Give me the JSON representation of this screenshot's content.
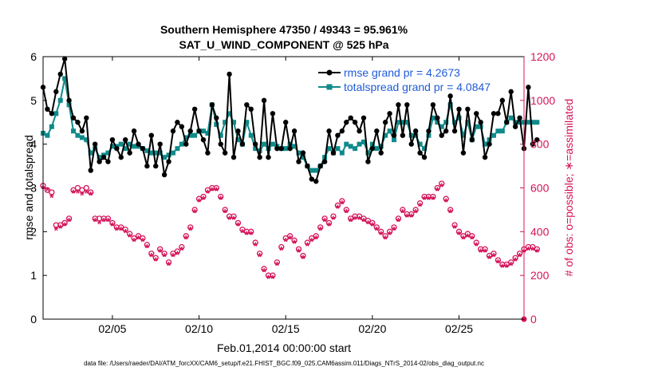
{
  "chart_data": {
    "type": "line",
    "title_line1": "Southern Hemisphere 47350 / 49343 = 95.961%",
    "title_line2": "SAT_U_WIND_COMPONENT @ 525 hPa",
    "ylabel_left": "rmse and totalspread",
    "ylabel_right": "# of obs: o=possible; ∗=assimilated",
    "xlabel": "Feb.01,2014 00:00:00 start",
    "footer": "data file: /Users/raeder/DAI/ATM_forcXX/CAM6_setup/f.e21.FHIST_BGC.f09_025.CAM6assim.011/Diags_NTrS_2014-02/obs_diag_output.nc",
    "xlim": [
      1,
      28.75
    ],
    "ylim_left": [
      0,
      6
    ],
    "ylim_right": [
      0,
      1200
    ],
    "x_ticks": [
      {
        "x": 5,
        "label": "02/05"
      },
      {
        "x": 10,
        "label": "02/10"
      },
      {
        "x": 15,
        "label": "02/15"
      },
      {
        "x": 20,
        "label": "02/20"
      },
      {
        "x": 25,
        "label": "02/25"
      }
    ],
    "y_ticks_left": [
      0,
      1,
      2,
      3,
      4,
      5,
      6
    ],
    "y_ticks_right": [
      0,
      200,
      400,
      600,
      800,
      1000,
      1200
    ],
    "colors": {
      "rmse": "#000000",
      "spread": "#0f8a8a",
      "obs": "#d4145a",
      "legend_text": "#1f5bd6"
    },
    "series": [
      {
        "name": "rmse",
        "legend": "rmse grand pr = 4.2673",
        "start": 1.0,
        "step": 0.25,
        "values": [
          5.3,
          4.8,
          4.7,
          5.2,
          5.6,
          5.95,
          5.0,
          4.6,
          4.5,
          4.3,
          4.6,
          3.4,
          4.0,
          3.6,
          3.7,
          3.6,
          4.1,
          3.9,
          3.7,
          4.1,
          3.8,
          4.3,
          4.0,
          3.9,
          3.5,
          4.2,
          3.5,
          4.0,
          3.3,
          3.6,
          4.3,
          4.5,
          4.4,
          4.0,
          4.3,
          4.8,
          4.3,
          4.1,
          3.8,
          4.9,
          4.6,
          4.0,
          3.8,
          5.6,
          3.7,
          4.3,
          4.0,
          4.9,
          4.8,
          4.0,
          3.7,
          5.0,
          3.7,
          4.7,
          3.9,
          3.9,
          4.5,
          3.9,
          4.3,
          3.6,
          3.8,
          3.5,
          3.2,
          3.15,
          3.5,
          3.6,
          4.3,
          3.8,
          4.2,
          4.3,
          4.5,
          4.6,
          4.5,
          4.3,
          4.6,
          3.6,
          3.9,
          4.3,
          3.8,
          4.5,
          4.7,
          4.2,
          4.9,
          4.2,
          4.9,
          4.0,
          4.3,
          3.8,
          3.7,
          4.3,
          4.9,
          4.6,
          4.2,
          4.3,
          5.1,
          4.3,
          4.8,
          3.8,
          4.8,
          4.1,
          4.7,
          4.5,
          3.7,
          4.0,
          4.7,
          4.7,
          5.0,
          4.5,
          5.2,
          4.4,
          4.6,
          3.9,
          5.3,
          4.0,
          4.1
        ]
      },
      {
        "name": "totalspread",
        "legend": "totalspread grand pr = 4.0847",
        "start": 1.0,
        "step": 0.25,
        "values": [
          4.25,
          4.2,
          4.4,
          4.7,
          5.0,
          5.5,
          4.9,
          4.3,
          4.2,
          4.15,
          4.1,
          3.8,
          3.9,
          3.7,
          3.75,
          3.8,
          3.95,
          3.95,
          4.0,
          3.9,
          4.0,
          3.95,
          3.95,
          3.9,
          3.85,
          3.8,
          3.8,
          3.8,
          3.7,
          3.75,
          3.8,
          3.9,
          4.0,
          4.15,
          4.2,
          4.2,
          4.3,
          4.3,
          4.25,
          4.9,
          4.45,
          4.2,
          4.5,
          4.7,
          4.5,
          4.1,
          4.0,
          4.5,
          4.2,
          3.9,
          3.85,
          4.0,
          3.9,
          4.0,
          3.95,
          3.9,
          3.9,
          4.0,
          3.95,
          3.8,
          3.7,
          3.5,
          3.4,
          3.4,
          3.5,
          3.7,
          3.9,
          3.8,
          3.9,
          3.8,
          4.0,
          3.95,
          3.9,
          4.0,
          4.05,
          3.8,
          4.0,
          3.9,
          3.95,
          4.2,
          4.3,
          4.1,
          4.5,
          4.5,
          4.5,
          4.2,
          4.2,
          4.0,
          3.9,
          4.2,
          4.6,
          4.5,
          4.4,
          4.5,
          4.9,
          4.5,
          4.6,
          4.2,
          4.5,
          4.1,
          4.4,
          4.4,
          4.0,
          4.1,
          4.2,
          4.3,
          4.3,
          4.5,
          4.6,
          4.5,
          4.5,
          4.5,
          4.5,
          4.5,
          4.5
        ]
      },
      {
        "name": "obs_possible",
        "start": 1.0,
        "step": 0.25,
        "values": [
          610,
          590,
          580,
          430,
          430,
          440,
          460,
          590,
          600,
          590,
          600,
          580,
          460,
          460,
          460,
          460,
          440,
          420,
          420,
          410,
          390,
          370,
          380,
          370,
          340,
          300,
          280,
          320,
          300,
          260,
          300,
          310,
          330,
          380,
          420,
          500,
          550,
          560,
          590,
          600,
          600,
          560,
          500,
          470,
          470,
          440,
          410,
          400,
          400,
          350,
          300,
          230,
          200,
          200,
          260,
          330,
          370,
          380,
          360,
          320,
          290,
          350,
          370,
          380,
          420,
          460,
          440,
          470,
          520,
          540,
          500,
          460,
          470,
          470,
          460,
          450,
          440,
          420,
          400,
          380,
          400,
          420,
          460,
          500,
          480,
          480,
          500,
          530,
          560,
          560,
          560,
          600,
          620,
          550,
          500,
          430,
          400,
          380,
          390,
          380,
          350,
          320,
          320,
          290,
          300,
          270,
          250,
          250,
          260,
          280,
          300,
          320,
          330,
          330,
          320
        ]
      },
      {
        "name": "obs_assimilated",
        "start": 1.0,
        "step": 0.25,
        "values": [
          600,
          590,
          560,
          410,
          420,
          430,
          450,
          580,
          580,
          570,
          580,
          570,
          450,
          440,
          450,
          450,
          430,
          410,
          410,
          400,
          380,
          360,
          370,
          360,
          330,
          290,
          270,
          310,
          290,
          250,
          290,
          300,
          320,
          370,
          410,
          490,
          540,
          550,
          580,
          590,
          590,
          550,
          490,
          460,
          460,
          430,
          400,
          390,
          390,
          340,
          290,
          220,
          190,
          190,
          250,
          320,
          360,
          370,
          350,
          310,
          280,
          340,
          360,
          370,
          410,
          450,
          430,
          460,
          510,
          530,
          490,
          450,
          460,
          460,
          450,
          440,
          430,
          410,
          390,
          370,
          390,
          410,
          450,
          490,
          470,
          470,
          490,
          520,
          550,
          550,
          550,
          590,
          610,
          540,
          490,
          420,
          390,
          370,
          380,
          370,
          340,
          310,
          310,
          280,
          290,
          260,
          240,
          240,
          250,
          270,
          290,
          310,
          320,
          320,
          310
        ]
      }
    ]
  }
}
